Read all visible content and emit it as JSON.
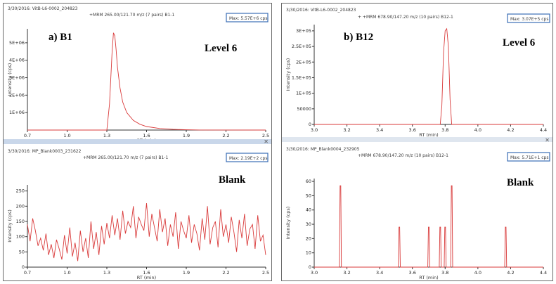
{
  "colors": {
    "trace": "#d93a3a",
    "axis": "#333333",
    "separator": "#c9d7ea",
    "maxbox": "#3b6fb6"
  },
  "chart_data": [
    {
      "type": "line",
      "id": "b1_level6",
      "header_left": "3/30/2016: VitB-L6-0002_204823",
      "header_mid": "+MRM 265.00/121.70 m/z (7 pairs) B1-1",
      "max_label": "Max: 5.57E+6 cps",
      "panel_label": "a) B1",
      "level_label": "Level 6",
      "xlabel": "RT (min)",
      "ylabel": "Intensity (cps)",
      "xlim": [
        0.7,
        2.5
      ],
      "ylim": [
        0,
        5800000
      ],
      "xticks": [
        "0.7",
        "1.0",
        "1.3",
        "1.6",
        "1.9",
        "2.2",
        "2.5"
      ],
      "yticks": [
        "1E+06",
        "2E+06",
        "3E+06",
        "4E+06",
        "5E+06"
      ],
      "x": [
        0.7,
        1.3,
        1.32,
        1.34,
        1.35,
        1.36,
        1.37,
        1.38,
        1.4,
        1.42,
        1.45,
        1.5,
        1.55,
        1.6,
        1.7,
        1.8,
        1.9,
        2.0,
        2.5
      ],
      "y": [
        0,
        0,
        1500000,
        4500000,
        5570000,
        5400000,
        4600000,
        3600000,
        2400000,
        1600000,
        1000000,
        550000,
        330000,
        200000,
        90000,
        40000,
        15000,
        5000,
        0
      ]
    },
    {
      "type": "line",
      "id": "b1_blank",
      "header_left": "3/30/2016: MP_Blank0003_231622",
      "header_mid": "+MRM 265.00/121.70 m/z (7 pairs) B1-1",
      "max_label": "Max: 2.19E+2 cps",
      "level_label": "Blank",
      "xlabel": "RT (min)",
      "ylabel": "Intensity (cps)",
      "xlim": [
        0.7,
        2.5
      ],
      "ylim": [
        0,
        270
      ],
      "xticks": [
        "0.7",
        "1.0",
        "1.3",
        "1.6",
        "1.9",
        "2.2",
        "2.5"
      ],
      "yticks": [
        "0",
        "50",
        "100",
        "150",
        "200",
        "250"
      ],
      "x": [
        0.7,
        0.72,
        0.74,
        0.76,
        0.78,
        0.8,
        0.82,
        0.84,
        0.86,
        0.88,
        0.9,
        0.92,
        0.94,
        0.96,
        0.98,
        1.0,
        1.02,
        1.04,
        1.06,
        1.08,
        1.1,
        1.12,
        1.14,
        1.16,
        1.18,
        1.2,
        1.22,
        1.24,
        1.26,
        1.28,
        1.3,
        1.32,
        1.34,
        1.36,
        1.38,
        1.4,
        1.42,
        1.44,
        1.46,
        1.48,
        1.5,
        1.52,
        1.54,
        1.56,
        1.58,
        1.6,
        1.62,
        1.64,
        1.66,
        1.68,
        1.7,
        1.72,
        1.74,
        1.76,
        1.78,
        1.8,
        1.82,
        1.84,
        1.86,
        1.88,
        1.9,
        1.92,
        1.94,
        1.96,
        1.98,
        2.0,
        2.02,
        2.04,
        2.06,
        2.08,
        2.1,
        2.12,
        2.14,
        2.16,
        2.18,
        2.2,
        2.22,
        2.24,
        2.26,
        2.28,
        2.3,
        2.32,
        2.34,
        2.36,
        2.38,
        2.4,
        2.42,
        2.44,
        2.46,
        2.48,
        2.5
      ],
      "y": [
        140,
        85,
        160,
        120,
        70,
        95,
        55,
        110,
        40,
        75,
        30,
        90,
        60,
        25,
        105,
        45,
        130,
        35,
        80,
        20,
        120,
        50,
        95,
        30,
        150,
        60,
        115,
        40,
        135,
        75,
        145,
        95,
        170,
        105,
        160,
        90,
        185,
        110,
        150,
        130,
        200,
        95,
        165,
        140,
        120,
        210,
        100,
        175,
        130,
        85,
        190,
        115,
        160,
        70,
        140,
        100,
        180,
        60,
        150,
        120,
        95,
        170,
        80,
        140,
        110,
        55,
        160,
        90,
        200,
        75,
        130,
        150,
        65,
        190,
        100,
        140,
        80,
        165,
        115,
        50,
        155,
        95,
        175,
        70,
        125,
        140,
        60,
        170,
        85,
        105,
        40
      ]
    },
    {
      "type": "line",
      "id": "b12_level6",
      "header_left": "3/30/2016: VitB-L6-0002_204823",
      "header_mid": "+ +MRM 678.90/147.20 m/z (10 pairs) B12-1",
      "max_label": "Max: 3.07E+5 cps",
      "panel_label": "b) B12",
      "level_label": "Level 6",
      "xlabel": "RT (min)",
      "ylabel": "Intensity (cps)",
      "xlim": [
        3.0,
        4.4
      ],
      "ylim": [
        0,
        320000
      ],
      "xticks": [
        "3.0",
        "3.2",
        "3.4",
        "3.6",
        "3.8",
        "4.0",
        "4.2",
        "4.4"
      ],
      "yticks": [
        "0",
        "50000",
        "1E+05",
        "1.5E+05",
        "2E+05",
        "2.5E+05",
        "3E+05"
      ],
      "x": [
        3.0,
        3.77,
        3.78,
        3.79,
        3.8,
        3.81,
        3.82,
        3.83,
        3.84,
        4.4
      ],
      "y": [
        0,
        0,
        60000,
        230000,
        300000,
        307000,
        250000,
        80000,
        0,
        0
      ]
    },
    {
      "type": "line",
      "id": "b12_blank",
      "header_left": "3/30/2016: MP_Blank0004_232905",
      "header_mid": "+MRM 678.90/147.20 m/z (10 pairs) B12-1",
      "max_label": "Max: 5.71E+1 cps",
      "level_label": "Blank",
      "xlabel": "RT (min)",
      "ylabel": "Intensity (cps)",
      "xlim": [
        3.0,
        4.4
      ],
      "ylim": [
        0,
        62
      ],
      "xticks": [
        "3.0",
        "3.2",
        "3.4",
        "3.6",
        "3.8",
        "4.0",
        "4.2",
        "4.4"
      ],
      "yticks": [
        "0",
        "10",
        "20",
        "30",
        "40",
        "50",
        "60"
      ],
      "peaks": [
        {
          "x": 3.16,
          "y": 57
        },
        {
          "x": 3.52,
          "y": 28
        },
        {
          "x": 3.7,
          "y": 28
        },
        {
          "x": 3.77,
          "y": 28
        },
        {
          "x": 3.8,
          "y": 28
        },
        {
          "x": 3.84,
          "y": 57
        },
        {
          "x": 4.17,
          "y": 28
        }
      ]
    }
  ]
}
